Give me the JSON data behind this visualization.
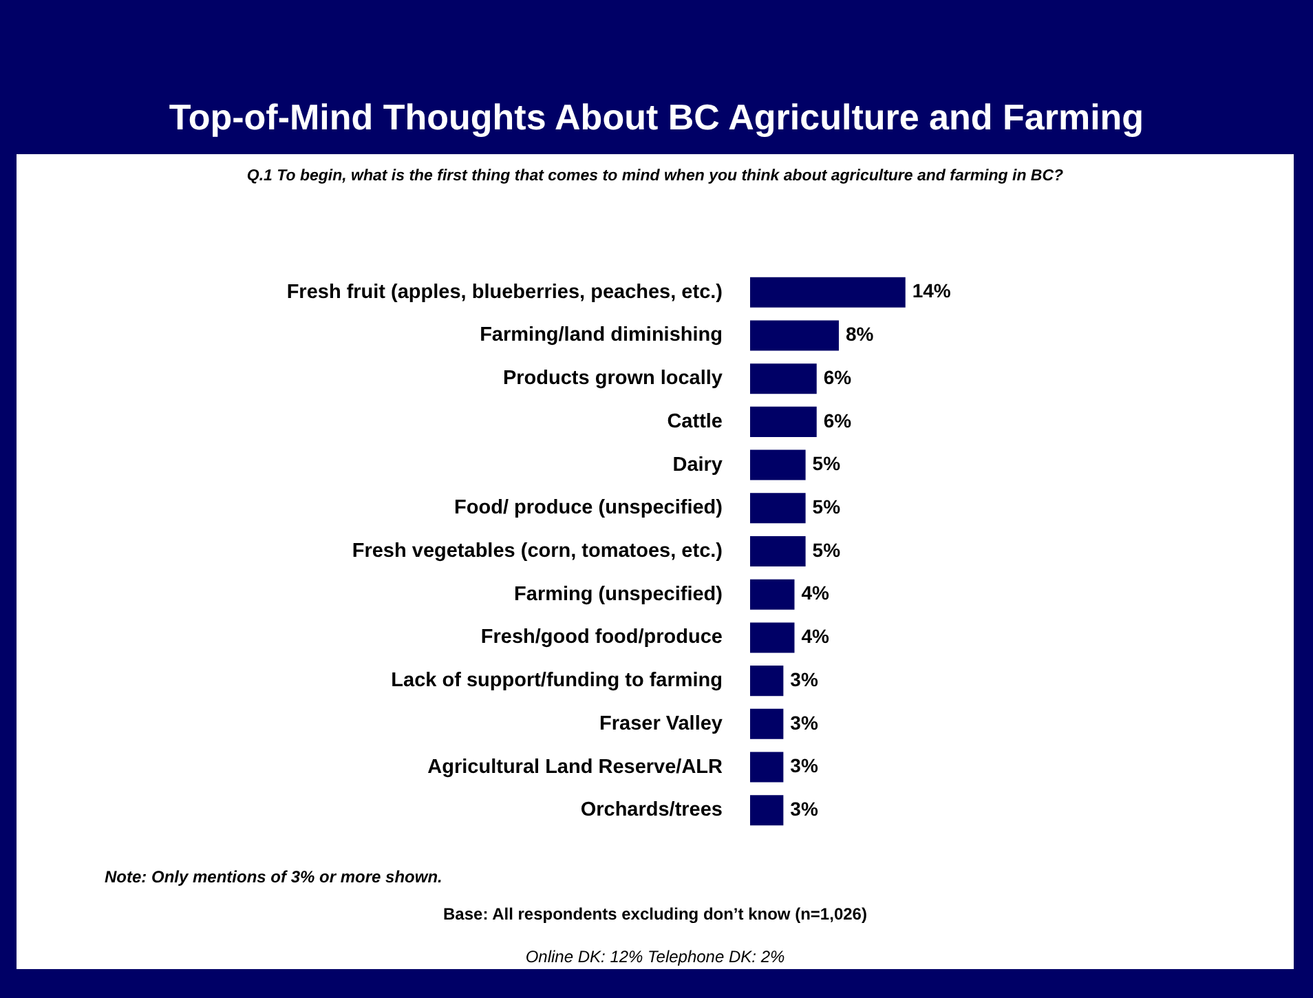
{
  "chart_data": {
    "type": "bar",
    "orientation": "horizontal",
    "title": "Top-of-Mind Thoughts About BC Agriculture and Farming",
    "subtitle": "Q.1 To begin, what is the first thing that comes to mind when you think about agriculture and farming in BC?",
    "categories": [
      "Fresh fruit (apples, blueberries, peaches, etc.)",
      "Farming/land diminishing",
      "Products grown locally",
      "Cattle",
      "Dairy",
      "Food/ produce (unspecified)",
      "Fresh vegetables (corn, tomatoes, etc.)",
      "Farming (unspecified)",
      "Fresh/good food/produce",
      "Lack of support/funding to farming",
      "Fraser Valley",
      "Agricultural Land Reserve/ALR",
      "Orchards/trees"
    ],
    "values": [
      14,
      8,
      6,
      6,
      5,
      5,
      5,
      4,
      4,
      3,
      3,
      3,
      3
    ],
    "value_labels": [
      "14%",
      "8%",
      "6%",
      "6%",
      "5%",
      "5%",
      "5%",
      "4%",
      "4%",
      "3%",
      "3%",
      "3%",
      "3%"
    ],
    "color": "#000066",
    "annotations": [
      "Note: Only mentions of 3% or more shown.",
      "Base: All respondents excluding don’t know (n=1,026)",
      "Online DK: 12%  Telephone DK: 2%"
    ]
  }
}
